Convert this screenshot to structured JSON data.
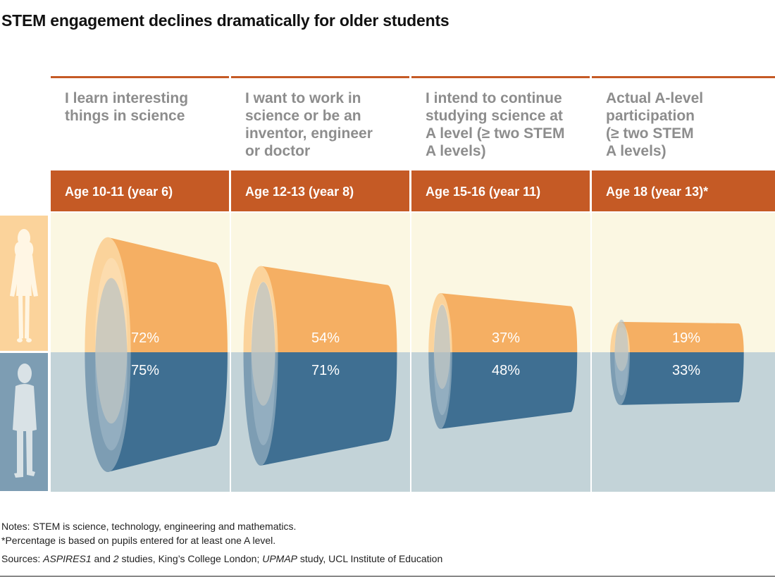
{
  "title": "STEM engagement declines dramatically for older students",
  "colors": {
    "header_orange": "#c55a25",
    "rule_orange": "#c55a25",
    "heading_grey": "#8d8d8d",
    "girls_band": "#fbf7e2",
    "boys_band": "#c3d3d8",
    "girls_cone": "#f5af63",
    "girls_cone_face": "#fbd39b",
    "boys_cone": "#3f6f92",
    "boys_cone_face": "#7d9db3"
  },
  "icons": {
    "girls": "female-figure-icon",
    "boys": "male-figure-icon"
  },
  "chart_data": {
    "type": "bar",
    "title": "STEM engagement declines dramatically for older students",
    "categories": [
      "I learn interesting things in science",
      "I want to work in science or be an inventor, engineer or doctor",
      "I intend to continue studying science at A level (≥ two STEM A levels)",
      "Actual A-level participation (≥ two STEM A levels)"
    ],
    "ages": [
      "Age 10-11 (year 6)",
      "Age 12-13 (year 8)",
      "Age 15-16 (year 11)",
      "Age 18 (year 13)*"
    ],
    "series": [
      {
        "values": [
          72,
          54,
          37,
          19
        ],
        "labels": [
          "72%",
          "54%",
          "37%",
          "19%"
        ]
      },
      {
        "values": [
          75,
          71,
          48,
          33
        ],
        "labels": [
          "75%",
          "71%",
          "48%",
          "33%"
        ]
      }
    ]
  },
  "notes": {
    "line1": "Notes: STEM is science, technology, engineering and mathematics.",
    "line2": "*Percentage is based on pupils entered for at least one A level.",
    "sources_prefix": "Sources: ",
    "sources_aspires": "ASPIRES1",
    "sources_and": " and ",
    "sources_2": "2",
    "sources_kings": " studies, King’s College London; ",
    "sources_upmap": "UPMAP",
    "sources_rest": " study, UCL Institute of Education"
  }
}
